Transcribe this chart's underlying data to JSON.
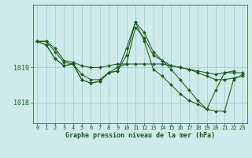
{
  "title": "Graphe pression niveau de la mer (hPa)",
  "bg_color": "#ceeaea",
  "line_color": "#1a5c1a",
  "marker_color": "#1a5c1a",
  "grid_color": "#9ec8c8",
  "tick_label_color": "#1a5c1a",
  "xlim": [
    -0.5,
    23.5
  ],
  "ylim": [
    1017.4,
    1020.8
  ],
  "yticks": [
    1018,
    1019
  ],
  "ytick_labels": [
    "1018",
    "1019"
  ],
  "xticks": [
    0,
    1,
    2,
    3,
    4,
    5,
    6,
    7,
    8,
    9,
    10,
    11,
    12,
    13,
    14,
    15,
    16,
    17,
    18,
    19,
    20,
    21,
    22,
    23
  ],
  "series": [
    [
      1019.75,
      1019.75,
      1019.55,
      1019.2,
      1019.15,
      1019.05,
      1019.0,
      1019.0,
      1019.05,
      1019.1,
      1019.1,
      1019.1,
      1019.1,
      1019.1,
      1019.1,
      1019.05,
      1019.0,
      1018.95,
      1018.85,
      1018.75,
      1018.65,
      1018.65,
      1018.7,
      1018.75
    ],
    [
      1019.75,
      1019.75,
      1019.45,
      1019.15,
      1019.1,
      1018.8,
      1018.65,
      1018.65,
      1018.85,
      1019.0,
      1019.1,
      1020.15,
      1019.85,
      1019.35,
      1019.2,
      1019.05,
      1019.0,
      1018.95,
      1018.9,
      1018.85,
      1018.8,
      1018.85,
      1018.85,
      1018.85
    ],
    [
      1019.75,
      1019.65,
      1019.25,
      1019.05,
      1019.1,
      1018.65,
      1018.55,
      1018.6,
      1018.85,
      1018.9,
      1019.35,
      1020.3,
      1019.75,
      1018.95,
      1018.75,
      1018.5,
      1018.25,
      1018.05,
      1017.95,
      1017.8,
      1018.35,
      1018.85,
      1018.9,
      null
    ],
    [
      1019.75,
      1019.65,
      1019.25,
      1019.05,
      1019.1,
      1018.65,
      1018.55,
      1018.6,
      1018.85,
      1018.9,
      1019.55,
      1020.3,
      1020.0,
      1019.45,
      1019.2,
      1018.95,
      1018.65,
      1018.35,
      1018.05,
      1017.8,
      1017.75,
      1017.75,
      1018.65,
      1018.8
    ]
  ]
}
